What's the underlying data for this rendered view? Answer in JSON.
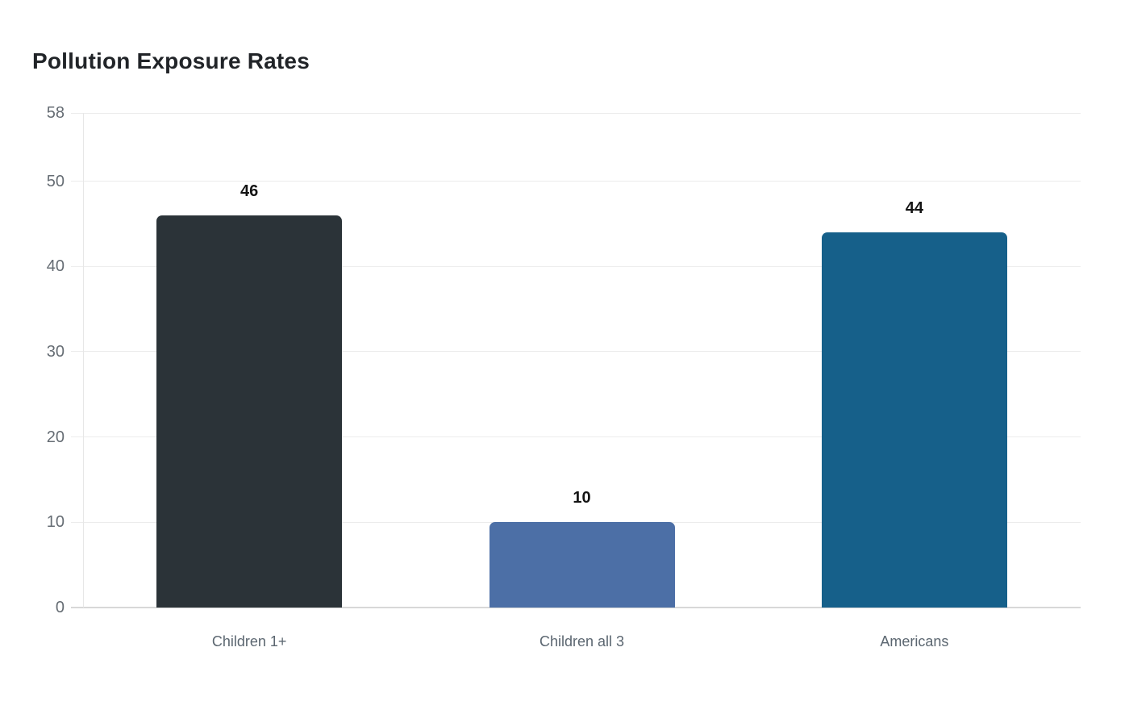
{
  "page": {
    "background_color": "#ffffff"
  },
  "chart_data": {
    "type": "bar",
    "title": "Pollution Exposure Rates",
    "categories": [
      "Children 1+",
      "Children all 3",
      "Americans"
    ],
    "values": [
      46,
      10,
      44
    ],
    "value_labels": [
      "46",
      "10",
      "44"
    ],
    "bar_colors": [
      "#2b3338",
      "#4c6fa6",
      "#16608a"
    ],
    "xlabel": "",
    "ylabel": "",
    "ylim": [
      0,
      58
    ],
    "yticks": [
      0,
      10,
      20,
      30,
      40,
      50,
      58
    ],
    "grid": "horizontal-only",
    "legend": "none",
    "colors": {
      "title": "#212428",
      "gridline": "#ececec",
      "baseline": "#d8d8d8",
      "y_axis_line": "#e7e7e7",
      "y_tick_label": "#666d74",
      "x_tick_label": "#5b6670",
      "value_label": "#141414",
      "background": "#ffffff"
    }
  }
}
